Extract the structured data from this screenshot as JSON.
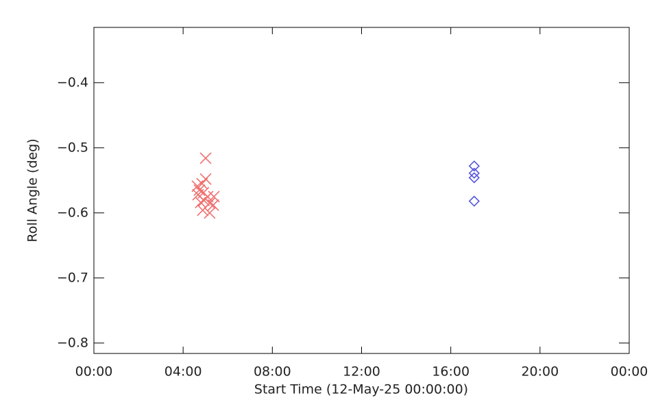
{
  "chart_data": {
    "type": "scatter",
    "x_label": "Start Time (12-May-25 00:00:00)",
    "y_label": "Roll Angle (deg)",
    "xlim": [
      0,
      24
    ],
    "xticks": [
      {
        "value": 0,
        "label": "00:00"
      },
      {
        "value": 4,
        "label": "04:00"
      },
      {
        "value": 8,
        "label": "08:00"
      },
      {
        "value": 12,
        "label": "12:00"
      },
      {
        "value": 16,
        "label": "16:00"
      },
      {
        "value": 20,
        "label": "20:00"
      },
      {
        "value": 24,
        "label": "00:00"
      }
    ],
    "ylim": [
      -0.816,
      -0.315
    ],
    "yticks": [
      {
        "value": -0.4,
        "label": "−0.4"
      },
      {
        "value": -0.5,
        "label": "−0.5"
      },
      {
        "value": -0.6,
        "label": "−0.6"
      },
      {
        "value": -0.7,
        "label": "−0.7"
      },
      {
        "value": -0.8,
        "label": "−0.8"
      }
    ],
    "series": [
      {
        "color": "#f07070",
        "marker": "cross",
        "x": [
          5.01,
          5.01,
          4.85,
          4.64,
          4.73,
          4.67,
          4.91,
          5.1,
          5.38,
          4.94,
          5.19,
          5.35,
          4.88,
          5.19,
          4.79
        ],
        "values": [
          -0.516,
          -0.548,
          -0.555,
          -0.559,
          -0.565,
          -0.572,
          -0.569,
          -0.575,
          -0.575,
          -0.581,
          -0.585,
          -0.588,
          -0.596,
          -0.6,
          -0.584
        ]
      },
      {
        "color": "#5555dd",
        "marker": "diamond",
        "x": [
          17.05,
          17.05,
          17.05,
          17.05
        ],
        "values": [
          -0.528,
          -0.539,
          -0.546,
          -0.582
        ]
      }
    ]
  }
}
